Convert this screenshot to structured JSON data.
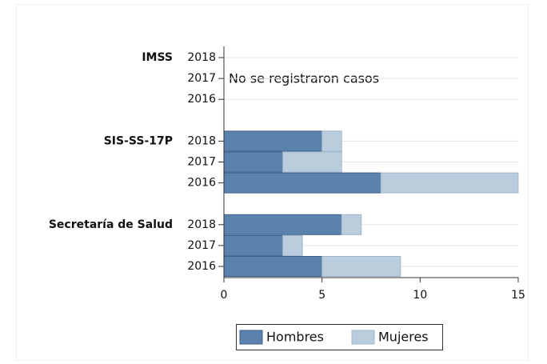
{
  "chart_data": {
    "type": "stacked-barh",
    "groups": [
      "IMSS",
      "SIS-SS-17P",
      "Secretaría de Salud"
    ],
    "categories": [
      "2018",
      "2017",
      "2016",
      "2018",
      "2017",
      "2016",
      "2018",
      "2017",
      "2016"
    ],
    "series": [
      {
        "name": "Hombres",
        "color": "#5a82ad",
        "values": [
          null,
          null,
          null,
          5,
          3,
          8,
          6,
          3,
          5
        ]
      },
      {
        "name": "Mujeres",
        "color": "#b9cddd",
        "values": [
          null,
          null,
          null,
          1,
          3,
          7,
          1,
          1,
          4
        ]
      }
    ],
    "annotation": "No se registraron casos",
    "xlim": [
      0,
      15
    ],
    "xticks": [
      0,
      5,
      10,
      15
    ],
    "grid": true,
    "legend": "bottom"
  }
}
